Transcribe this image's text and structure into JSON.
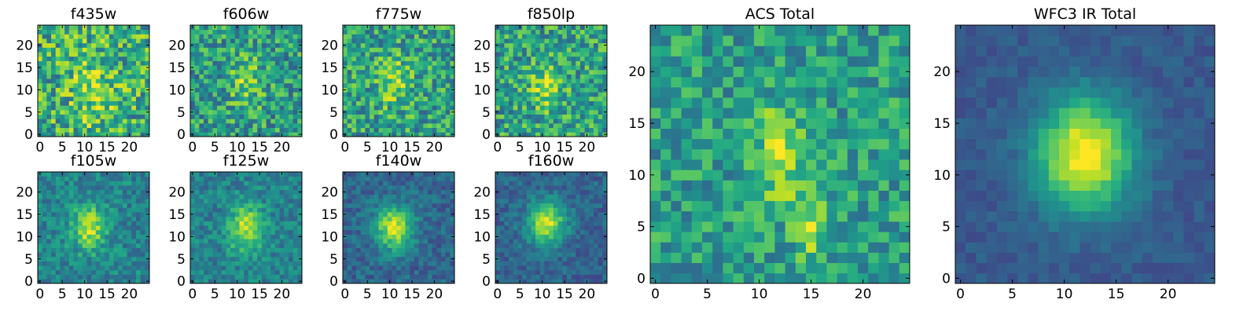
{
  "colors": {
    "colormap": "viridis",
    "background": "#ffffff",
    "axes_frame": "#000000",
    "text": "#000000"
  },
  "chart_data": [
    {
      "type": "heatmap",
      "title": "f435w",
      "grid_size": 25,
      "xticks": [
        "0",
        "5",
        "10",
        "15",
        "20"
      ],
      "yticks": [
        "0",
        "5",
        "10",
        "15",
        "20"
      ],
      "source_profile": {
        "peak": 0.2,
        "center_x": 12,
        "center_y": 10,
        "sigma_x": 3.5,
        "sigma_y": 6,
        "noise": 0.3,
        "baseline": 0.62,
        "seed": 11
      }
    },
    {
      "type": "heatmap",
      "title": "f606w",
      "grid_size": 25,
      "xticks": [
        "0",
        "5",
        "10",
        "15",
        "20"
      ],
      "yticks": [
        "0",
        "5",
        "10",
        "15",
        "20"
      ],
      "source_profile": {
        "peak": 0.25,
        "center_x": 12,
        "center_y": 12,
        "sigma_x": 2.5,
        "sigma_y": 4,
        "noise": 0.26,
        "baseline": 0.55,
        "seed": 23
      }
    },
    {
      "type": "heatmap",
      "title": "f775w",
      "grid_size": 25,
      "xticks": [
        "0",
        "5",
        "10",
        "15",
        "20"
      ],
      "yticks": [
        "0",
        "5",
        "10",
        "15",
        "20"
      ],
      "source_profile": {
        "peak": 0.25,
        "center_x": 11,
        "center_y": 12,
        "sigma_x": 2.5,
        "sigma_y": 4,
        "noise": 0.26,
        "baseline": 0.57,
        "seed": 37
      }
    },
    {
      "type": "heatmap",
      "title": "f850lp",
      "grid_size": 25,
      "xticks": [
        "0",
        "5",
        "10",
        "15",
        "20"
      ],
      "yticks": [
        "0",
        "5",
        "10",
        "15",
        "20"
      ],
      "source_profile": {
        "peak": 0.3,
        "center_x": 11,
        "center_y": 11,
        "sigma_x": 2.5,
        "sigma_y": 3.5,
        "noise": 0.26,
        "baseline": 0.57,
        "seed": 41
      }
    },
    {
      "type": "heatmap",
      "title": "f105w",
      "grid_size": 25,
      "xticks": [
        "0",
        "5",
        "10",
        "15",
        "20"
      ],
      "yticks": [
        "0",
        "5",
        "10",
        "15",
        "20"
      ],
      "source_profile": {
        "peak": 0.45,
        "center_x": 11,
        "center_y": 12,
        "sigma_x": 2.5,
        "sigma_y": 3.5,
        "noise": 0.15,
        "baseline": 0.45,
        "seed": 53
      }
    },
    {
      "type": "heatmap",
      "title": "f125w",
      "grid_size": 25,
      "xticks": [
        "0",
        "5",
        "10",
        "15",
        "20"
      ],
      "yticks": [
        "0",
        "5",
        "10",
        "15",
        "20"
      ],
      "source_profile": {
        "peak": 0.45,
        "center_x": 12,
        "center_y": 12,
        "sigma_x": 2.7,
        "sigma_y": 3.7,
        "noise": 0.14,
        "baseline": 0.44,
        "seed": 61
      }
    },
    {
      "type": "heatmap",
      "title": "f140w",
      "grid_size": 25,
      "xticks": [
        "0",
        "5",
        "10",
        "15",
        "20"
      ],
      "yticks": [
        "0",
        "5",
        "10",
        "15",
        "20"
      ],
      "source_profile": {
        "peak": 0.6,
        "center_x": 11,
        "center_y": 12,
        "sigma_x": 3,
        "sigma_y": 3.5,
        "noise": 0.12,
        "baseline": 0.33,
        "seed": 71
      }
    },
    {
      "type": "heatmap",
      "title": "f160w",
      "grid_size": 25,
      "xticks": [
        "0",
        "5",
        "10",
        "15",
        "20"
      ],
      "yticks": [
        "0",
        "5",
        "10",
        "15",
        "20"
      ],
      "source_profile": {
        "peak": 0.6,
        "center_x": 11,
        "center_y": 13,
        "sigma_x": 3,
        "sigma_y": 3.5,
        "noise": 0.11,
        "baseline": 0.32,
        "seed": 83
      }
    },
    {
      "type": "heatmap",
      "title": "ACS Total",
      "grid_size": 25,
      "xticks": [
        "0",
        "5",
        "10",
        "15",
        "20"
      ],
      "yticks": [
        "0",
        "5",
        "10",
        "15",
        "20"
      ],
      "source_profile": {
        "peak": 0.35,
        "center_x": 12,
        "center_y": 12,
        "sigma_x": 1.6,
        "sigma_y": 3.2,
        "noise": 0.2,
        "baseline": 0.55,
        "seed": 97,
        "secondary_peak": {
          "peak": 0.28,
          "center_x": 15,
          "center_y": 5,
          "sigma_x": 1.2,
          "sigma_y": 2.2
        }
      }
    },
    {
      "type": "heatmap",
      "title": "WFC3 IR Total",
      "grid_size": 25,
      "xticks": [
        "0",
        "5",
        "10",
        "15",
        "20"
      ],
      "yticks": [
        "0",
        "5",
        "10",
        "15",
        "20"
      ],
      "source_profile": {
        "peak": 0.75,
        "center_x": 12,
        "center_y": 12,
        "sigma_x": 3.2,
        "sigma_y": 3.8,
        "noise": 0.06,
        "baseline": 0.28,
        "seed": 101
      }
    }
  ]
}
